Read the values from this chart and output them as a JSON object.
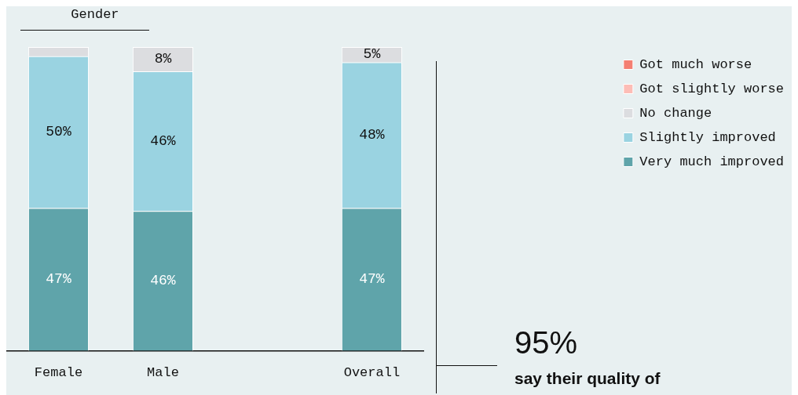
{
  "chart_data": {
    "type": "bar",
    "stacked": true,
    "categories": [
      "Female",
      "Male",
      null,
      "Overall"
    ],
    "series": [
      {
        "name": "Very much improved",
        "color": "#5fa4aa",
        "values": [
          47,
          46,
          null,
          47
        ],
        "value_labels": [
          "47%",
          "46%",
          null,
          "47%"
        ]
      },
      {
        "name": "Slightly improved",
        "color": "#9ad3e1",
        "values": [
          50,
          46,
          null,
          48
        ],
        "value_labels": [
          "50%",
          "46%",
          null,
          "48%"
        ]
      },
      {
        "name": "No change",
        "color": "#dcdde0",
        "values": [
          3,
          8,
          null,
          5
        ],
        "value_labels": [
          null,
          "8%",
          null,
          "5%"
        ]
      },
      {
        "name": "Got slightly worse",
        "color": "#fdbdb6",
        "values": [
          null,
          null,
          null,
          null
        ]
      },
      {
        "name": "Got much worse",
        "color": "#f47f72",
        "values": [
          null,
          null,
          null,
          null
        ]
      }
    ],
    "ylim": [
      0,
      100
    ],
    "tick_labels": "x",
    "grid": false,
    "legend": "top right",
    "annotations": [
      "Gender",
      "95%",
      "say their quality of"
    ]
  }
}
